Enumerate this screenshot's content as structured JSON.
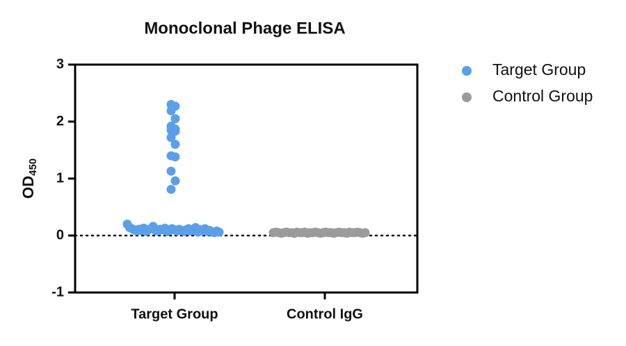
{
  "chart_data": {
    "type": "scatter",
    "title": "Monoclonal Phage ELISA",
    "ylabel": {
      "text": "OD",
      "subscript": "450"
    },
    "categories": [
      "Target Group",
      "Control IgG"
    ],
    "series": [
      {
        "name": "Target Group",
        "color": "#5b9fe9",
        "values": [
          2.3,
          2.27,
          2.19,
          2.05,
          1.92,
          1.87,
          1.85,
          1.83,
          1.72,
          1.6,
          1.4,
          1.38,
          1.13,
          0.96,
          0.81,
          0.2,
          0.14,
          0.12,
          0.1,
          0.08,
          0.11,
          0.09,
          0.13,
          0.07,
          0.1,
          0.12,
          0.16,
          0.09,
          0.08,
          0.11,
          0.1,
          0.13,
          0.07,
          0.09,
          0.12,
          0.1,
          0.08,
          0.11,
          0.09,
          0.07,
          0.1,
          0.12,
          0.08,
          0.09,
          0.14,
          0.06,
          0.1,
          0.08,
          0.12,
          0.07,
          0.09,
          0.06,
          0.05,
          0.08,
          0.06
        ]
      },
      {
        "name": "Control Group",
        "color": "#9b9b9b",
        "values": [
          0.05,
          0.06,
          0.05,
          0.04,
          0.05,
          0.06,
          0.05,
          0.05,
          0.04,
          0.06,
          0.05,
          0.05,
          0.06,
          0.04,
          0.05,
          0.05,
          0.06,
          0.05,
          0.04,
          0.05,
          0.06,
          0.05,
          0.05,
          0.04,
          0.05,
          0.06,
          0.05,
          0.05,
          0.04,
          0.06,
          0.05,
          0.05,
          0.06,
          0.05,
          0.04,
          0.05
        ]
      }
    ],
    "ylim": [
      -1,
      3
    ],
    "yticks": [
      -1,
      0,
      1,
      2,
      3
    ],
    "reference_line": 0,
    "legend": "right"
  }
}
